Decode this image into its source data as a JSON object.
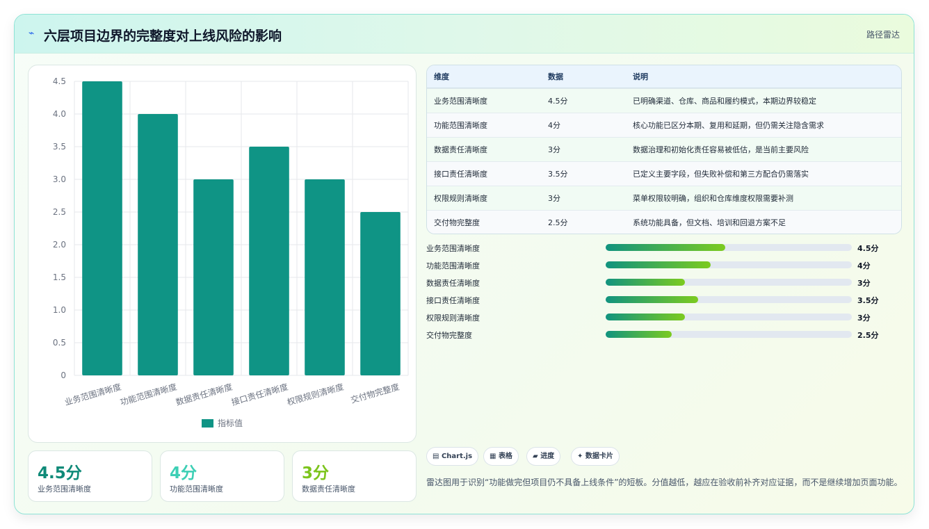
{
  "header": {
    "title": "六层项目边界的完整度对上线风险的影响",
    "tag": "路径雷达"
  },
  "chart_data": {
    "type": "bar",
    "categories": [
      "业务范围清晰度",
      "功能范围清晰度",
      "数据责任清晰度",
      "接口责任清晰度",
      "权限规则清晰度",
      "交付物完整度"
    ],
    "series": [
      {
        "name": "指标值",
        "values": [
          4.5,
          4,
          3,
          3.5,
          3,
          2.5
        ]
      }
    ],
    "ylim": [
      0,
      4.5
    ],
    "yticks": [
      "0",
      "0.5",
      "1.0",
      "1.5",
      "2.0",
      "2.5",
      "3.0",
      "3.5",
      "4.0",
      "4.5"
    ],
    "grid": true,
    "legend": "bottom",
    "color": "#0f9485"
  },
  "kpis": [
    {
      "value": "4.5分",
      "label": "业务范围清晰度",
      "color": "#0f8a78"
    },
    {
      "value": "4分",
      "label": "功能范围清晰度",
      "color": "#3dcfb5"
    },
    {
      "value": "3分",
      "label": "数据责任清晰度",
      "color": "#7cc41c"
    }
  ],
  "table": {
    "headers": [
      "维度",
      "数据",
      "说明"
    ],
    "rows": [
      [
        "业务范围清晰度",
        "4.5分",
        "已明确渠道、仓库、商品和履约模式，本期边界较稳定"
      ],
      [
        "功能范围清晰度",
        "4分",
        "核心功能已区分本期、复用和延期，但仍需关注隐含需求"
      ],
      [
        "数据责任清晰度",
        "3分",
        "数据治理和初始化责任容易被低估，是当前主要风险"
      ],
      [
        "接口责任清晰度",
        "3.5分",
        "已定义主要字段，但失败补偿和第三方配合仍需落实"
      ],
      [
        "权限规则清晰度",
        "3分",
        "菜单权限较明确，组织和仓库维度权限需要补测"
      ],
      [
        "交付物完整度",
        "2.5分",
        "系统功能具备，但文档、培训和回退方案不足"
      ]
    ]
  },
  "progress": [
    {
      "label": "业务范围清晰度",
      "value": "4.5分",
      "pct": 48.6
    },
    {
      "label": "功能范围清晰度",
      "value": "4分",
      "pct": 42.7
    },
    {
      "label": "数据责任清晰度",
      "value": "3分",
      "pct": 32.2
    },
    {
      "label": "接口责任清晰度",
      "value": "3.5分",
      "pct": 37.6
    },
    {
      "label": "权限规则清晰度",
      "value": "3分",
      "pct": 32.2
    },
    {
      "label": "交付物完整度",
      "value": "2.5分",
      "pct": 26.8
    }
  ],
  "chips": [
    {
      "icon": "▤",
      "label": "Chart.js"
    },
    {
      "icon": "▦",
      "label": "表格"
    },
    {
      "icon": "▰",
      "label": "进度"
    },
    {
      "icon": "✦",
      "label": "数据卡片"
    }
  ],
  "note": "雷达图用于识别“功能做完但项目仍不具备上线条件”的短板。分值越低，越应在验收前补齐对应证据，而不是继续增加页面功能。"
}
